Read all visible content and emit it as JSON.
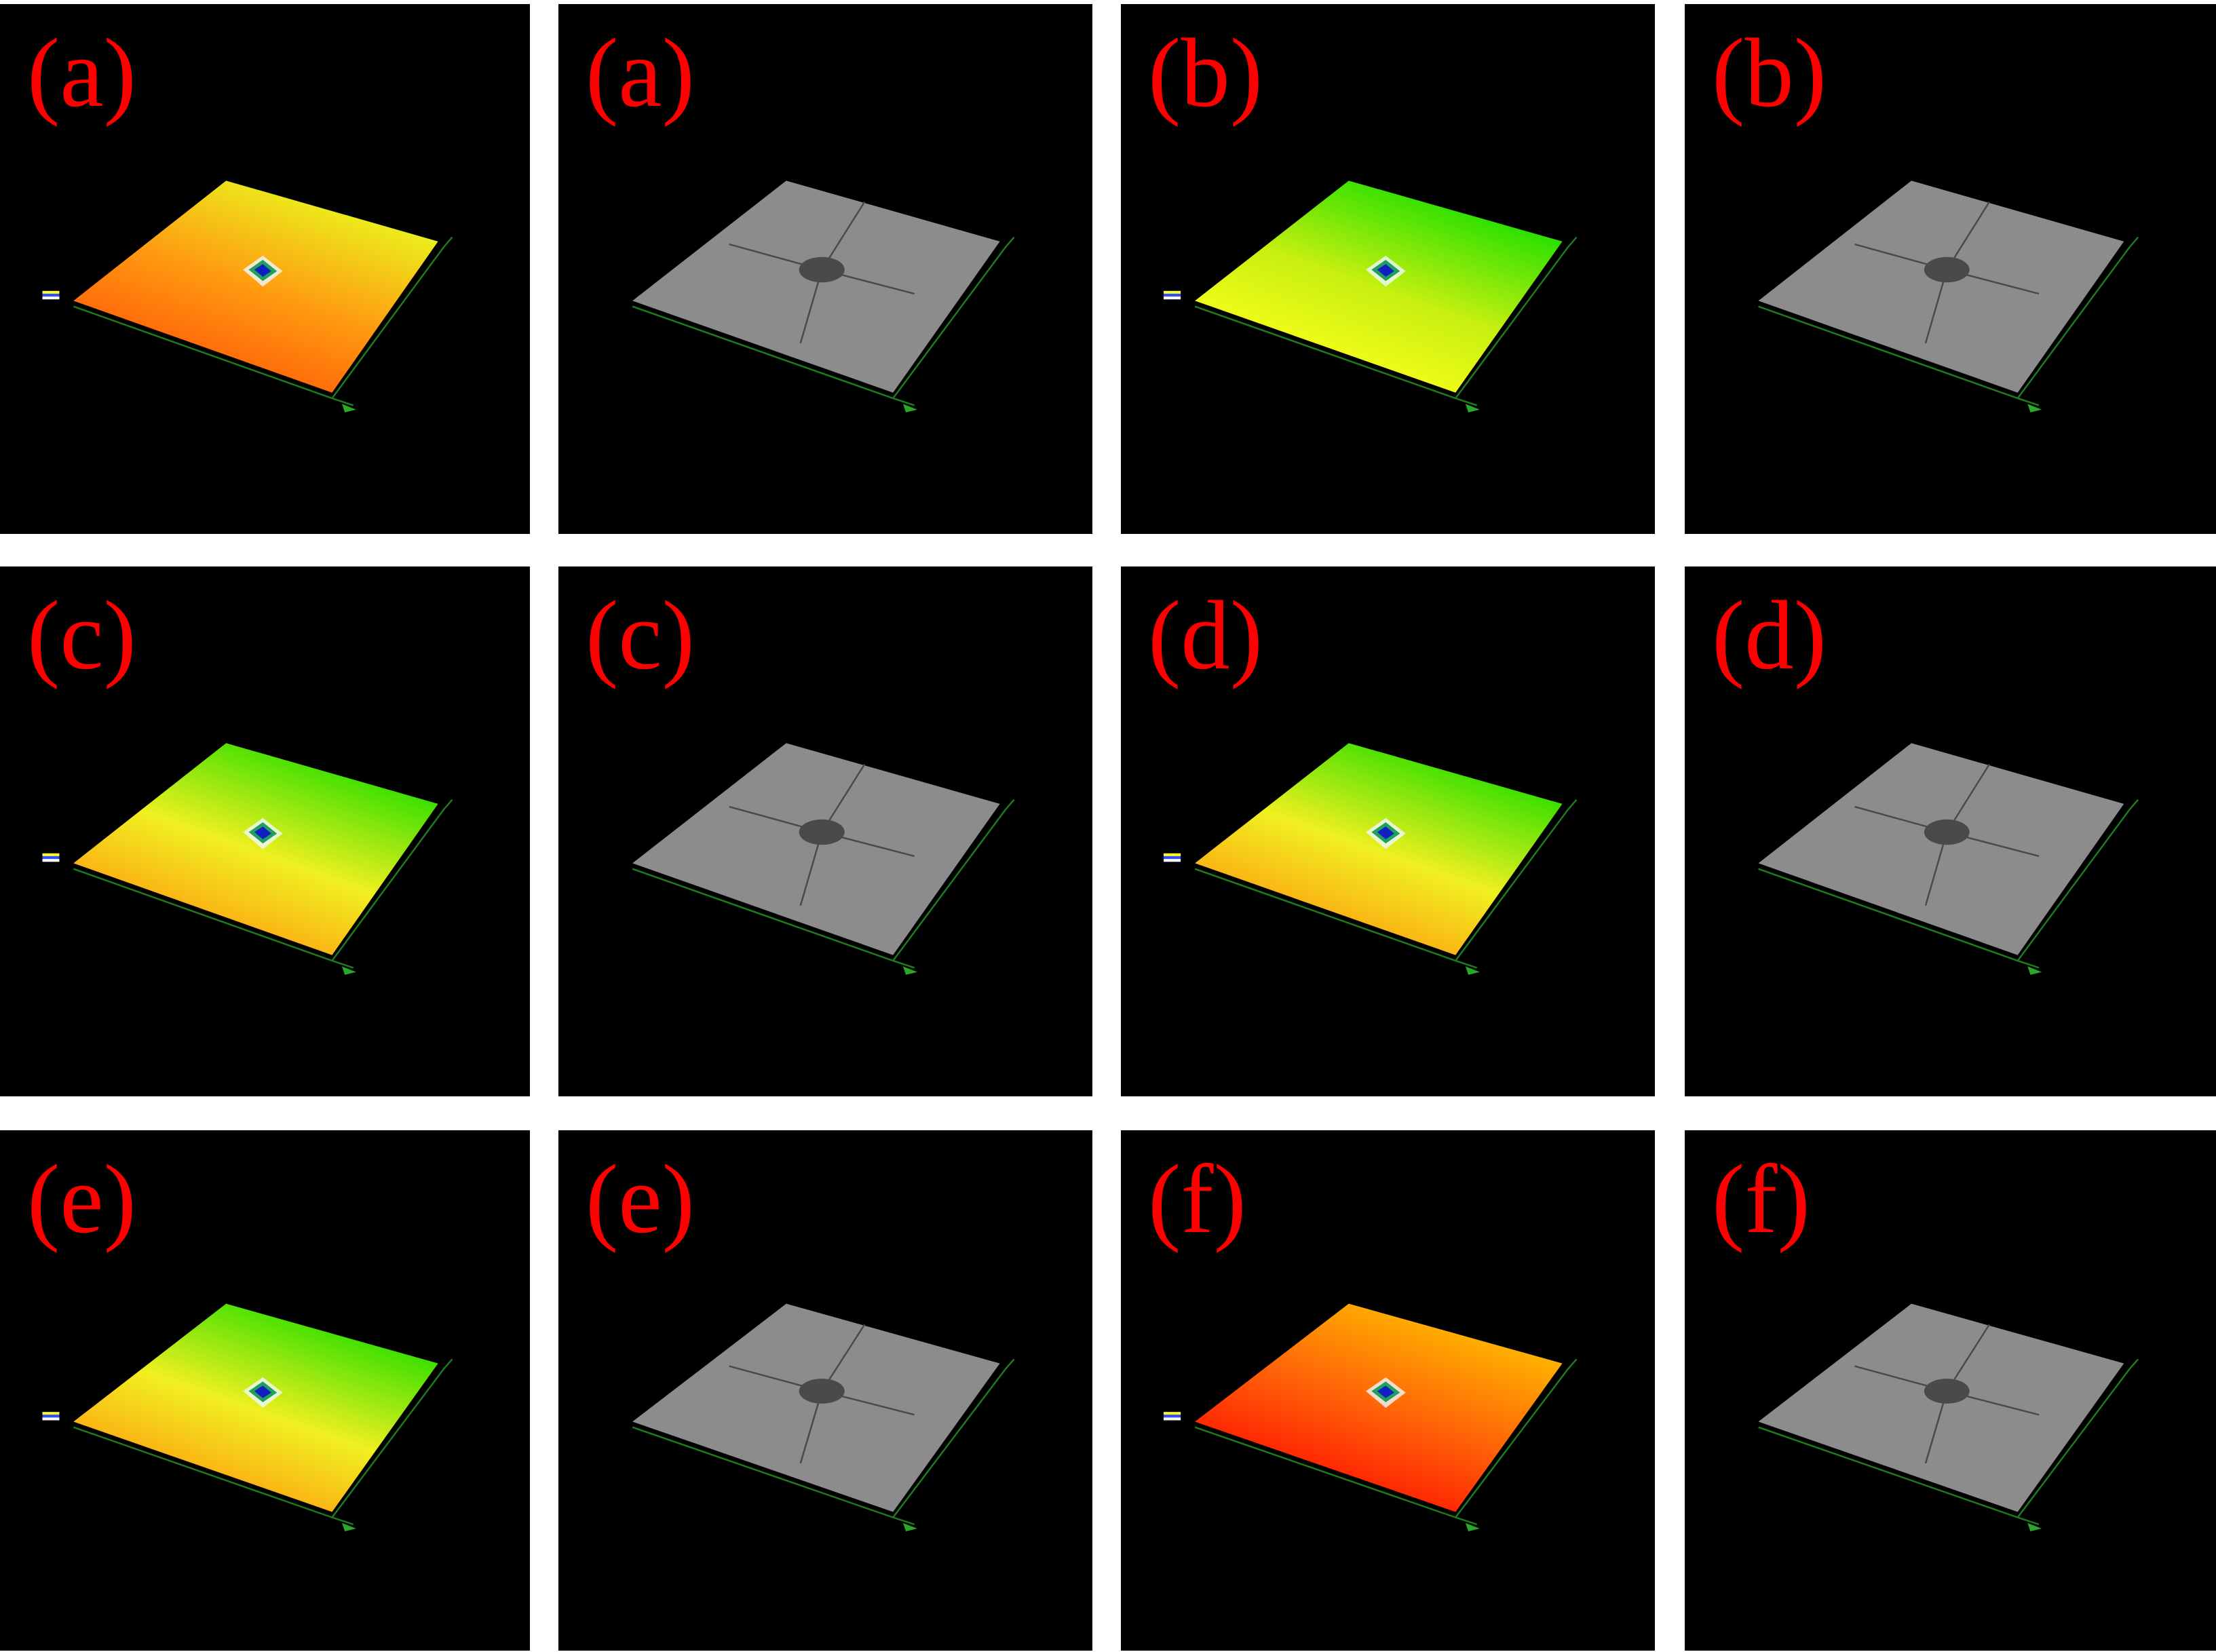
{
  "panels": [
    {
      "label": "(a)"
    },
    {
      "label": "(a)"
    },
    {
      "label": "(b)"
    },
    {
      "label": "(b)"
    },
    {
      "label": "(c)"
    },
    {
      "label": "(c)"
    },
    {
      "label": "(d)"
    },
    {
      "label": "(d)"
    },
    {
      "label": "(e)"
    },
    {
      "label": "(e)"
    },
    {
      "label": "(f)"
    },
    {
      "label": "(f)"
    }
  ]
}
